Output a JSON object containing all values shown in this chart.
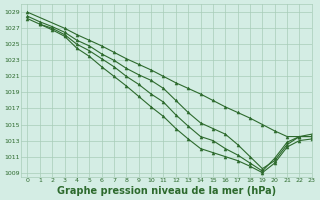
{
  "background_color": "#d4ede4",
  "grid_color": "#a8ccb8",
  "line_color": "#2d6a2d",
  "marker_color": "#2d6a2d",
  "xlabel": "Graphe pression niveau de la mer (hPa)",
  "xlabel_fontsize": 7,
  "xlim": [
    -0.5,
    23
  ],
  "ylim": [
    1008.5,
    1030
  ],
  "yticks": [
    1009,
    1011,
    1013,
    1015,
    1017,
    1019,
    1021,
    1023,
    1025,
    1027,
    1029
  ],
  "xticks": [
    0,
    1,
    2,
    3,
    4,
    5,
    6,
    7,
    8,
    9,
    10,
    11,
    12,
    13,
    14,
    15,
    16,
    17,
    18,
    19,
    20,
    21,
    22,
    23
  ],
  "lines": [
    {
      "x": [
        0,
        3,
        4,
        5,
        6,
        7,
        8,
        9,
        10,
        11,
        12,
        13,
        14,
        15,
        16,
        17,
        18,
        19,
        20,
        21,
        22,
        23
      ],
      "y": [
        1029.0,
        1027.0,
        1026.2,
        1025.5,
        1024.8,
        1024.0,
        1023.2,
        1022.5,
        1021.8,
        1021.0,
        1020.2,
        1019.5,
        1018.8,
        1018.0,
        1017.2,
        1016.5,
        1015.8,
        1015.0,
        1014.2,
        1013.5,
        1013.5,
        1013.5
      ]
    },
    {
      "x": [
        0,
        1,
        2,
        3,
        4,
        5,
        6,
        7,
        8,
        9,
        10,
        11,
        12,
        13,
        14,
        15,
        16,
        17,
        18,
        19,
        20,
        21,
        22,
        23
      ],
      "y": [
        1028.5,
        1027.8,
        1027.2,
        1026.5,
        1025.5,
        1024.8,
        1023.8,
        1023.0,
        1022.0,
        1021.2,
        1020.5,
        1019.5,
        1018.0,
        1016.5,
        1015.2,
        1014.5,
        1013.8,
        1012.5,
        1011.0,
        1009.5,
        1010.5,
        1012.5,
        1013.5,
        1013.8
      ]
    },
    {
      "x": [
        0,
        1,
        2,
        3,
        4,
        5,
        6,
        7,
        8,
        9,
        10,
        11,
        12,
        13,
        14,
        15,
        16,
        17,
        18,
        19,
        20,
        21,
        22,
        23
      ],
      "y": [
        1028.2,
        1027.5,
        1027.0,
        1026.2,
        1025.0,
        1024.2,
        1023.2,
        1022.2,
        1021.0,
        1020.0,
        1018.8,
        1017.8,
        1016.2,
        1014.8,
        1013.5,
        1013.0,
        1012.0,
        1011.2,
        1010.2,
        1009.2,
        1010.8,
        1012.8,
        1013.5,
        1013.5
      ]
    },
    {
      "x": [
        1,
        2,
        3,
        4,
        5,
        6,
        7,
        8,
        9,
        10,
        11,
        12,
        13,
        14,
        15,
        16,
        17,
        18,
        19,
        20,
        21,
        22,
        23
      ],
      "y": [
        1027.5,
        1026.8,
        1026.0,
        1024.5,
        1023.5,
        1022.2,
        1021.0,
        1019.8,
        1018.5,
        1017.2,
        1016.0,
        1014.5,
        1013.2,
        1012.0,
        1011.5,
        1011.0,
        1010.5,
        1009.8,
        1009.0,
        1010.2,
        1012.2,
        1013.0,
        1013.2
      ]
    }
  ]
}
